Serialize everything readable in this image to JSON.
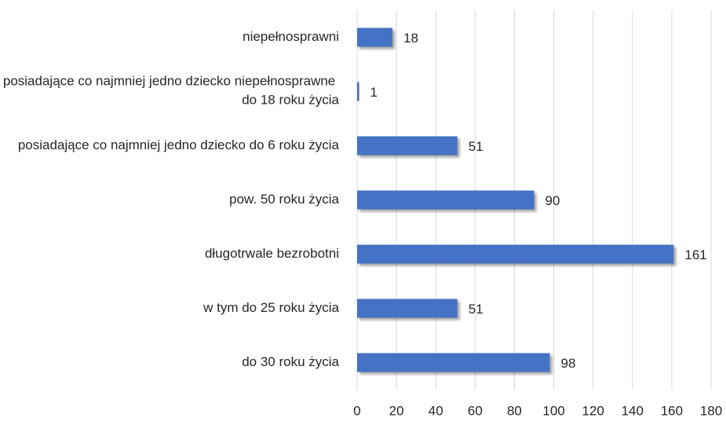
{
  "chart_data": {
    "type": "bar",
    "orientation": "horizontal",
    "categories": [
      "niepełnosprawni",
      "posiadające co najmniej jedno dziecko niepełnosprawne do 18 roku życia",
      "posiadające co najmniej jedno dziecko do 6 roku życia",
      "pow. 50 roku życia",
      "długotrwale bezrobotni",
      "w tym do 25 roku życia",
      "do 30 roku życia"
    ],
    "values": [
      18,
      1,
      51,
      90,
      161,
      51,
      98
    ],
    "color": "#4472c4",
    "xlim": [
      0,
      180
    ],
    "xticks": [
      0,
      20,
      40,
      60,
      80,
      100,
      120,
      140,
      160,
      180
    ],
    "grid": true
  }
}
